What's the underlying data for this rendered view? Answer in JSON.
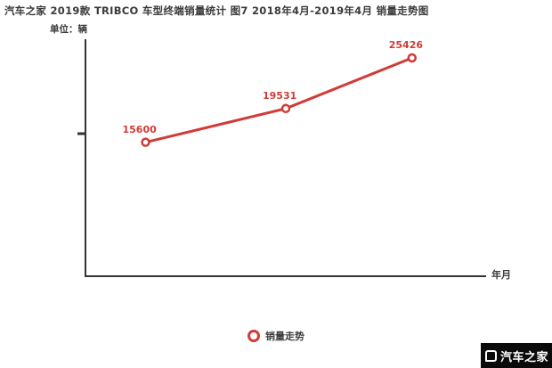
{
  "title": "汽车之家 2019款 TRIBCO 车型终端销量统计 图7 2018年4月-2019年4月 销量走势图",
  "axes": {
    "unit_label": "单位：辆",
    "x_axis_label": "年月"
  },
  "legend": {
    "label": "销量走势"
  },
  "watermark": {
    "text": "汽车之家"
  },
  "colors": {
    "line": "#d03b38",
    "point_label": "#d03b38",
    "axis": "#333333",
    "title_text": "#3a3a3a",
    "watermark_bg": "#0a0a0a",
    "watermark_text": "#ffffff"
  },
  "chart_data": {
    "type": "line",
    "title": "汽车之家 2019款 TRIBCO 车型终端销量统计 图7 2018年4月-2019年4月 销量走势图",
    "xlabel": "年月",
    "ylabel": "单位：辆",
    "x_range_from_title": [
      "2018年4月",
      "2019年4月"
    ],
    "values": [
      15600,
      19531,
      25426
    ],
    "labels": [
      "15600",
      "19531",
      "25426"
    ],
    "ylim": [
      0,
      27500
    ],
    "grid": false,
    "legend_entries": [
      "销量走势"
    ],
    "legend_position": "bottom-center",
    "series_color": "#d03b38",
    "marker": "open-circle"
  }
}
